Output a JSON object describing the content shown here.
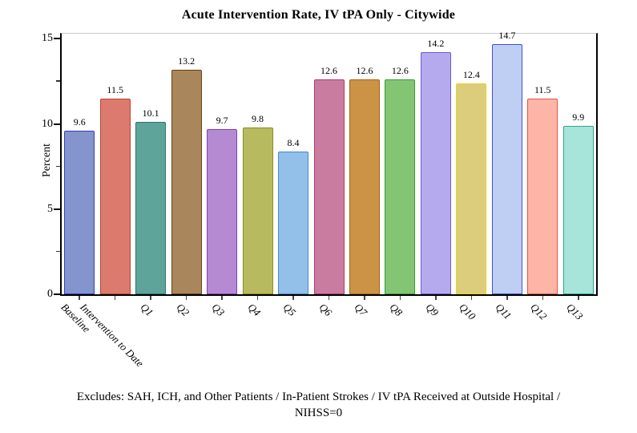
{
  "footnote": {
    "line1": "Excludes:  SAH, ICH, and Other Patients / In-Patient Strokes / IV tPA Received at Outside Hospital /",
    "line2": "NIHSS=0"
  },
  "chart_data": {
    "type": "bar",
    "title": "Acute Intervention Rate, IV tPA Only - Citywide",
    "xlabel": "",
    "ylabel": "Percent",
    "ylim": [
      0,
      15.3
    ],
    "yticks_major": [
      0,
      5,
      10,
      15
    ],
    "yticks_minor": [
      2.5,
      7.5,
      12.5
    ],
    "grid": false,
    "legend": false,
    "value_labels_shown": true,
    "categories": [
      "Baseline",
      "Intervention to Date",
      "Q1",
      "Q2",
      "Q3",
      "Q4",
      "Q5",
      "Q6",
      "Q7",
      "Q8",
      "Q9",
      "Q10",
      "Q11",
      "Q12",
      "Q13"
    ],
    "values": [
      9.6,
      11.5,
      10.1,
      13.2,
      9.7,
      9.8,
      8.4,
      12.6,
      12.6,
      12.6,
      14.2,
      12.4,
      14.7,
      11.5,
      9.9
    ],
    "bar_colors": [
      {
        "fill": "#8494cd",
        "border": "#3b3bc0"
      },
      {
        "fill": "#dd7a6e",
        "border": "#bf4136"
      },
      {
        "fill": "#5fa49b",
        "border": "#27766d"
      },
      {
        "fill": "#aa865c",
        "border": "#63460f"
      },
      {
        "fill": "#b58ad3",
        "border": "#8042b0"
      },
      {
        "fill": "#b7ba5e",
        "border": "#8c8c1e"
      },
      {
        "fill": "#92c0e9",
        "border": "#4a86c6"
      },
      {
        "fill": "#ca7ca0",
        "border": "#ab3c6d"
      },
      {
        "fill": "#cc9347",
        "border": "#a2650e"
      },
      {
        "fill": "#84c573",
        "border": "#389a3c"
      },
      {
        "fill": "#b6aaef",
        "border": "#7058d8"
      },
      {
        "fill": "#dccd7c",
        "border": "#e7d520"
      },
      {
        "fill": "#bfcef3",
        "border": "#3d52d4"
      },
      {
        "fill": "#fdb5a7",
        "border": "#e25145"
      },
      {
        "fill": "#a7e5da",
        "border": "#2aa695"
      }
    ],
    "axis_colors": {
      "axis_line": "#000000",
      "frame_top": "#c9c9c9",
      "x_tick": "#444444"
    }
  }
}
